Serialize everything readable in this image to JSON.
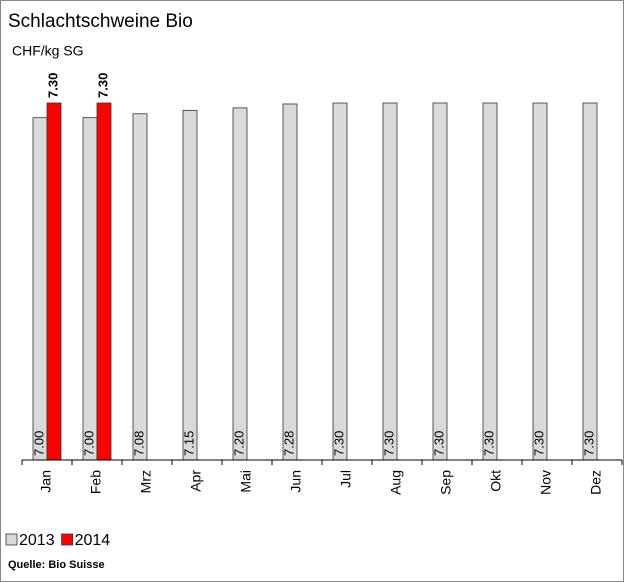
{
  "chart_data": {
    "type": "bar",
    "title": "Schlachtschweine Bio",
    "y_label": "CHF/kg SG",
    "categories": [
      "Jan",
      "Feb",
      "Mrz",
      "Apr",
      "Mai",
      "Jun",
      "Jul",
      "Aug",
      "Sep",
      "Okt",
      "Nov",
      "Dez"
    ],
    "series": [
      {
        "name": "2013",
        "color": "#d9d9d9",
        "values": [
          7.0,
          7.0,
          7.08,
          7.15,
          7.2,
          7.28,
          7.3,
          7.3,
          7.3,
          7.3,
          7.3,
          7.3
        ],
        "value_labels": [
          "7.00",
          "7.00",
          "7.08",
          "7.15",
          "7.20",
          "7.28",
          "7.30",
          "7.30",
          "7.30",
          "7.30",
          "7.30",
          "7.30"
        ]
      },
      {
        "name": "2014",
        "color": "#ff0000",
        "values": [
          7.3,
          7.3,
          null,
          null,
          null,
          null,
          null,
          null,
          null,
          null,
          null,
          null
        ],
        "value_labels": [
          "7.30",
          "7.30",
          null,
          null,
          null,
          null,
          null,
          null,
          null,
          null,
          null,
          null
        ]
      }
    ],
    "source": "Quelle: Bio Suisse"
  }
}
